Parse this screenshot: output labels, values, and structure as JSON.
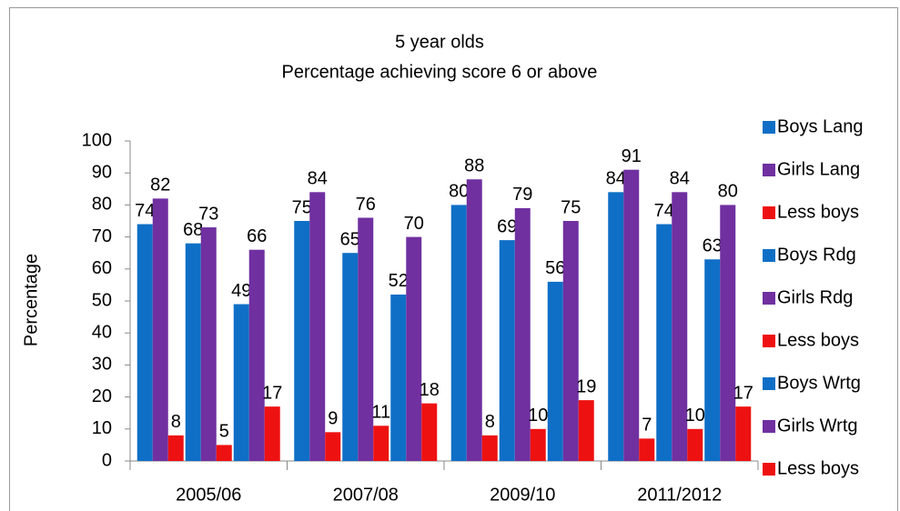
{
  "chart_data": {
    "type": "bar",
    "title": "5 year olds",
    "subtitle": "Percentage achieving score 6 or above",
    "y_label": "Percentage",
    "categories": [
      "2005/06",
      "2007/08",
      "2009/10",
      "2011/2012"
    ],
    "series": [
      {
        "name": "Boys Lang",
        "color": "#0f6fc6",
        "values": [
          74,
          75,
          80,
          84
        ]
      },
      {
        "name": "Girls Lang",
        "color": "#7030a0",
        "values": [
          82,
          84,
          88,
          91
        ]
      },
      {
        "name": "Less boys",
        "color": "#ee1111",
        "values": [
          8,
          9,
          8,
          7
        ]
      },
      {
        "name": "Boys Rdg",
        "color": "#0f6fc6",
        "values": [
          68,
          65,
          69,
          74
        ]
      },
      {
        "name": "Girls Rdg",
        "color": "#7030a0",
        "values": [
          73,
          76,
          79,
          84
        ]
      },
      {
        "name": "Less boys",
        "color": "#ee1111",
        "values": [
          5,
          11,
          10,
          10
        ]
      },
      {
        "name": "Boys Wrtg",
        "color": "#0f6fc6",
        "values": [
          49,
          52,
          56,
          63
        ]
      },
      {
        "name": "Girls Wrtg",
        "color": "#7030a0",
        "values": [
          66,
          70,
          75,
          80
        ]
      },
      {
        "name": "Less boys",
        "color": "#ee1111",
        "values": [
          17,
          18,
          19,
          17
        ]
      }
    ],
    "ylim": [
      0,
      100
    ],
    "yticks": [
      0,
      10,
      20,
      30,
      40,
      50,
      60,
      70,
      80,
      90,
      100
    ],
    "grid": false,
    "legend": "right"
  }
}
